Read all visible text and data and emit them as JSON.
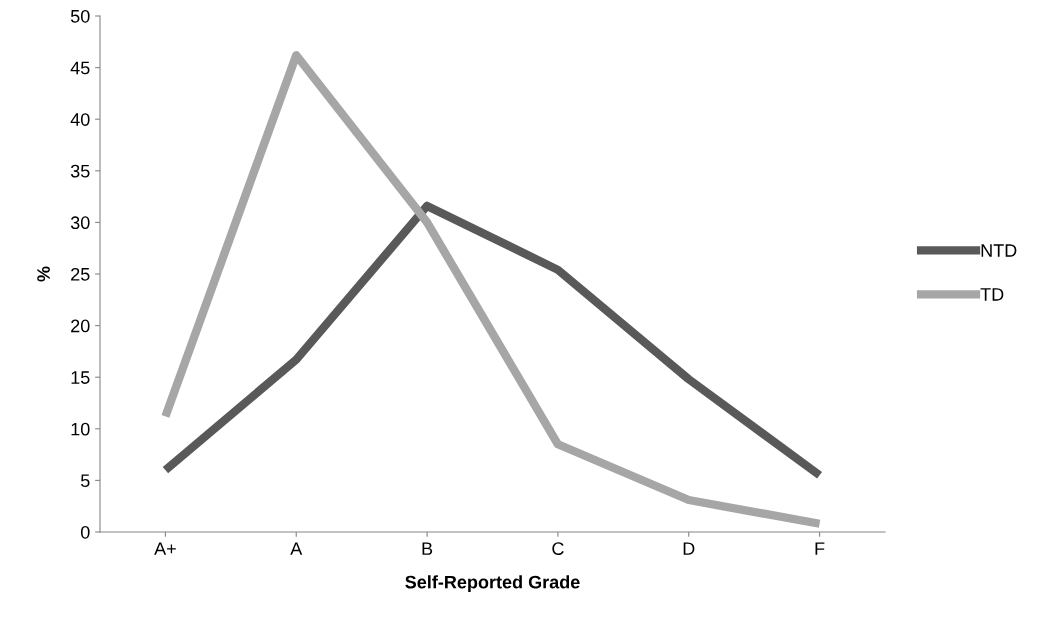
{
  "chart_data": {
    "type": "line",
    "xlabel": "Self-Reported Grade",
    "ylabel": "%",
    "categories": [
      "A+",
      "A",
      "B",
      "C",
      "D",
      "F"
    ],
    "series": [
      {
        "name": "NTD",
        "color": "#595959",
        "values": [
          6.0,
          16.7,
          31.6,
          25.4,
          14.8,
          5.5
        ]
      },
      {
        "name": "TD",
        "color": "#a6a6a6",
        "values": [
          11.2,
          46.2,
          30.0,
          8.5,
          3.1,
          0.8
        ]
      }
    ],
    "ylim": [
      0,
      50
    ],
    "yticks": [
      0,
      5,
      10,
      15,
      20,
      25,
      30,
      35,
      40,
      45,
      50
    ],
    "grid": false,
    "legend": "right",
    "marker": "none",
    "line_style": "solid"
  }
}
